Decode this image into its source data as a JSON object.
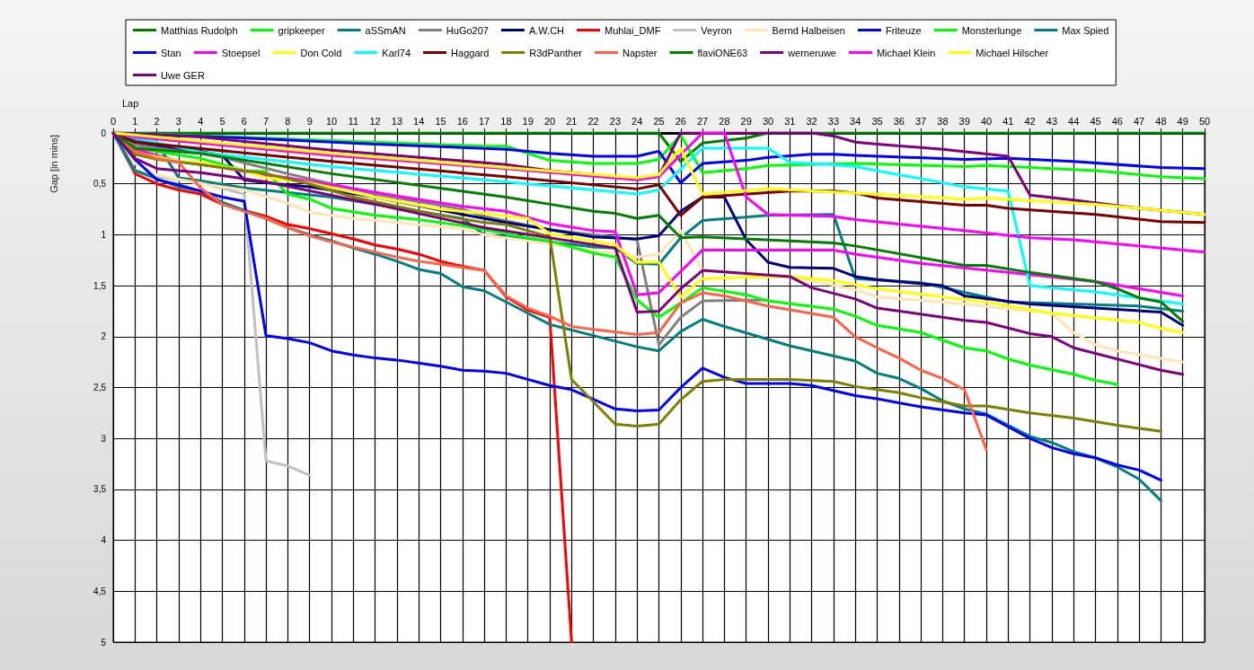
{
  "chart_data": {
    "type": "line",
    "xlabel": "Lap",
    "ylabel": "Gap [in mins]",
    "xlim": [
      0,
      50
    ],
    "xticks": [
      0,
      1,
      2,
      3,
      4,
      5,
      6,
      7,
      8,
      9,
      10,
      11,
      12,
      13,
      14,
      15,
      16,
      17,
      18,
      19,
      20,
      21,
      22,
      23,
      24,
      25,
      26,
      27,
      28,
      29,
      30,
      31,
      32,
      33,
      34,
      35,
      36,
      37,
      38,
      39,
      40,
      41,
      42,
      43,
      44,
      45,
      46,
      47,
      48,
      49,
      50
    ],
    "ylim": [
      5,
      0
    ],
    "yticks": [
      0,
      {
        "value": 0.5,
        "label": "0,5"
      },
      1,
      {
        "value": 1.5,
        "label": "1,5"
      },
      2,
      {
        "value": 2.5,
        "label": "2,5"
      },
      3,
      {
        "value": 3.5,
        "label": "3,5"
      },
      4,
      {
        "value": 4.5,
        "label": "4,5"
      },
      5
    ],
    "grid": true,
    "legend": "top",
    "marker": "none",
    "line_style": "solid",
    "series": [
      {
        "name": "Matthias Rudolph",
        "color": "#008000",
        "x": [
          0,
          25,
          26,
          27,
          29,
          30,
          50
        ],
        "values": [
          0,
          0,
          0.28,
          0.1,
          0.05,
          0,
          0
        ]
      },
      {
        "name": "gripkeeper",
        "color": "#00ff00",
        "x": [
          0,
          7,
          17,
          18,
          20,
          22,
          24,
          25,
          26,
          27,
          29,
          30,
          34,
          39,
          40,
          42,
          45,
          48,
          50
        ],
        "values": [
          0,
          0.05,
          0.13,
          0.13,
          0.27,
          0.3,
          0.3,
          0.26,
          0.02,
          0.39,
          0.35,
          0.32,
          0.3,
          0.33,
          0.32,
          0.34,
          0.37,
          0.43,
          0.45
        ]
      },
      {
        "name": "aSSmAN",
        "color": "#008080",
        "x": [
          0,
          1,
          2,
          3,
          4,
          6,
          10,
          16,
          17,
          18,
          22,
          23,
          24,
          25,
          26,
          27,
          30,
          33,
          34,
          37,
          41,
          47,
          49
        ],
        "values": [
          0,
          0.06,
          0.1,
          0.44,
          0.47,
          0.54,
          0.63,
          0.84,
          1.0,
          1.02,
          1.12,
          1.13,
          1.28,
          1.29,
          1.03,
          0.86,
          0.81,
          0.8,
          1.43,
          1.47,
          1.66,
          1.7,
          1.75
        ]
      },
      {
        "name": "HuGo207",
        "color": "#808080",
        "x": [
          0,
          1,
          4,
          5,
          8,
          12,
          16,
          17,
          20,
          24,
          25,
          26,
          27,
          30
        ],
        "values": [
          0,
          0.12,
          0.2,
          0.24,
          0.4,
          0.6,
          0.75,
          0.82,
          0.95,
          1.05,
          2.08,
          1.81,
          1.65,
          1.64
        ]
      },
      {
        "name": "A.W.CH",
        "color": "#000080",
        "x": [
          0,
          1,
          4,
          5,
          6,
          7,
          9,
          12,
          16,
          18,
          20,
          22,
          24,
          25,
          26,
          27,
          28,
          29,
          30,
          31,
          33,
          34,
          35,
          37,
          38,
          39,
          42,
          45,
          48,
          49
        ],
        "values": [
          0,
          0.09,
          0.18,
          0.22,
          0.46,
          0.49,
          0.53,
          0.63,
          0.8,
          0.88,
          0.95,
          1.02,
          1.04,
          1.01,
          0.77,
          0.63,
          0.63,
          1.05,
          1.27,
          1.32,
          1.33,
          1.41,
          1.44,
          1.48,
          1.5,
          1.6,
          1.68,
          1.72,
          1.76,
          1.89
        ]
      },
      {
        "name": "Muhlai_DMF",
        "color": "#ff0000",
        "x": [
          0,
          1,
          2,
          3,
          4,
          5,
          6,
          7,
          8,
          9,
          10,
          11,
          12,
          13,
          14,
          15,
          16,
          17,
          18,
          19,
          20,
          21
        ],
        "values": [
          0,
          0.4,
          0.5,
          0.56,
          0.6,
          0.7,
          0.76,
          0.82,
          0.9,
          0.94,
          0.99,
          1.04,
          1.1,
          1.14,
          1.19,
          1.26,
          1.31,
          1.35,
          1.61,
          1.74,
          1.81,
          5
        ]
      },
      {
        "name": "Veyron",
        "color": "#c0c0c0",
        "x": [
          0,
          1,
          2,
          4,
          6,
          7,
          8,
          9
        ],
        "values": [
          0,
          0.37,
          0.43,
          0.49,
          0.6,
          3.22,
          3.27,
          3.36
        ]
      },
      {
        "name": "Bernd Halbeisen",
        "color": "#ffe4b5",
        "x": [
          0,
          1,
          2,
          4,
          6,
          8,
          9,
          11,
          13,
          16,
          17,
          19,
          23,
          24,
          25,
          26,
          27,
          30,
          31,
          34,
          35,
          39,
          43,
          44,
          45,
          46,
          49
        ],
        "values": [
          0,
          0.3,
          0.41,
          0.5,
          0.56,
          0.69,
          0.78,
          0.84,
          0.88,
          0.94,
          1.0,
          1.06,
          1.18,
          1.22,
          1.19,
          0.96,
          1.35,
          1.41,
          1.41,
          1.54,
          1.61,
          1.68,
          1.77,
          1.96,
          2.08,
          2.14,
          2.25
        ]
      },
      {
        "name": "Friteuze",
        "color": "#0000ff",
        "x": [
          0,
          7,
          12,
          18,
          20,
          22,
          24,
          25,
          26,
          27,
          29,
          30,
          32,
          33,
          34,
          39,
          41,
          44,
          48,
          50
        ],
        "values": [
          0,
          0.06,
          0.11,
          0.16,
          0.2,
          0.23,
          0.23,
          0.18,
          0.49,
          0.3,
          0.27,
          0.24,
          0.21,
          0.21,
          0.22,
          0.26,
          0.25,
          0.28,
          0.34,
          0.35
        ]
      },
      {
        "name": "Monsterlunge",
        "color": "#00ff00",
        "x": [
          0,
          1,
          4,
          6,
          7,
          8,
          9,
          10,
          12,
          14,
          16,
          17,
          19,
          20,
          22,
          23,
          24,
          25,
          26,
          27,
          29,
          30,
          33,
          34,
          35,
          37,
          39,
          40,
          41,
          42,
          44,
          45,
          46
        ],
        "values": [
          0,
          0.15,
          0.25,
          0.37,
          0.38,
          0.6,
          0.65,
          0.74,
          0.81,
          0.85,
          0.91,
          0.95,
          1.03,
          1.06,
          1.18,
          1.22,
          1.64,
          1.81,
          1.67,
          1.52,
          1.59,
          1.65,
          1.73,
          1.8,
          1.89,
          1.96,
          2.11,
          2.14,
          2.22,
          2.28,
          2.37,
          2.43,
          2.47
        ]
      },
      {
        "name": "Max Spied",
        "color": "#008080",
        "x": [
          0,
          1,
          2,
          3,
          4,
          5,
          6,
          7,
          8,
          9,
          10,
          11,
          12,
          13,
          14,
          15,
          16,
          17,
          19,
          20,
          22,
          24,
          25,
          26,
          27,
          28,
          31,
          34,
          35,
          36,
          37,
          38,
          39,
          40,
          42,
          43,
          44,
          45,
          46,
          47,
          48
        ],
        "values": [
          0,
          0.37,
          0.45,
          0.53,
          0.57,
          0.68,
          0.76,
          0.84,
          0.93,
          1.0,
          1.06,
          1.13,
          1.19,
          1.26,
          1.34,
          1.38,
          1.51,
          1.55,
          1.77,
          1.88,
          1.99,
          2.1,
          2.14,
          1.95,
          1.83,
          1.9,
          2.09,
          2.24,
          2.36,
          2.41,
          2.51,
          2.63,
          2.71,
          2.76,
          2.98,
          3.04,
          3.13,
          3.19,
          3.28,
          3.4,
          3.61
        ]
      },
      {
        "name": "Stan",
        "color": "#0000ff",
        "x": [
          0,
          1,
          2,
          3,
          4,
          5,
          6,
          7,
          8,
          9,
          10,
          11,
          12,
          13,
          14,
          15,
          16,
          17,
          18,
          20,
          21,
          23,
          24,
          25,
          26,
          27,
          28,
          29,
          31,
          32,
          34,
          35,
          37,
          39,
          40,
          42,
          43,
          44,
          45,
          46,
          47,
          48
        ],
        "values": [
          0,
          0.26,
          0.46,
          0.51,
          0.57,
          0.63,
          0.67,
          1.99,
          2.02,
          2.06,
          2.14,
          2.18,
          2.21,
          2.23,
          2.26,
          2.29,
          2.33,
          2.34,
          2.36,
          2.48,
          2.52,
          2.71,
          2.73,
          2.72,
          2.5,
          2.31,
          2.4,
          2.46,
          2.46,
          2.48,
          2.58,
          2.61,
          2.69,
          2.75,
          2.77,
          3.0,
          3.09,
          3.15,
          3.19,
          3.26,
          3.31,
          3.41
        ]
      },
      {
        "name": "Stoepsel",
        "color": "#ff00ff",
        "x": [
          0,
          1,
          3,
          5,
          6,
          7,
          8,
          10,
          13,
          16,
          18,
          20,
          22,
          23,
          24,
          25,
          27,
          33,
          34,
          37,
          41,
          45,
          49
        ],
        "values": [
          0,
          0.16,
          0.28,
          0.34,
          0.38,
          0.41,
          0.44,
          0.51,
          0.62,
          0.72,
          0.77,
          0.89,
          0.96,
          0.97,
          1.59,
          1.57,
          1.15,
          1.15,
          1.19,
          1.28,
          1.37,
          1.46,
          1.6
        ]
      },
      {
        "name": "Don Cold",
        "color": "#ffff00",
        "x": [
          0,
          1,
          3,
          4,
          6,
          7,
          9,
          12,
          15,
          17,
          19,
          20,
          23,
          24,
          25,
          26,
          27,
          30,
          31,
          33,
          34,
          35,
          38,
          40,
          43,
          47,
          48,
          49
        ],
        "values": [
          0,
          0.19,
          0.28,
          0.29,
          0.37,
          0.44,
          0.49,
          0.63,
          0.75,
          0.79,
          0.84,
          0.99,
          1.1,
          1.27,
          1.27,
          1.61,
          1.43,
          1.41,
          1.41,
          1.45,
          1.49,
          1.53,
          1.61,
          1.66,
          1.77,
          1.86,
          1.92,
          1.96
        ]
      },
      {
        "name": "Karl74",
        "color": "#00ffff",
        "x": [
          0,
          4,
          10,
          18,
          24,
          25,
          27,
          30,
          31,
          33,
          34,
          39,
          41,
          42,
          45,
          46,
          49
        ],
        "values": [
          0,
          0.19,
          0.33,
          0.48,
          0.6,
          0.56,
          0.15,
          0.15,
          0.29,
          0.31,
          0.33,
          0.53,
          0.57,
          1.5,
          1.56,
          1.59,
          1.68
        ]
      },
      {
        "name": "Haggard",
        "color": "#800000",
        "x": [
          0,
          1,
          10,
          18,
          24,
          25,
          26,
          27,
          31,
          33,
          34,
          35,
          39,
          40,
          41,
          45,
          48,
          50
        ],
        "values": [
          0,
          0.09,
          0.28,
          0.43,
          0.55,
          0.51,
          0.81,
          0.63,
          0.57,
          0.57,
          0.59,
          0.64,
          0.71,
          0.71,
          0.74,
          0.8,
          0.87,
          0.88
        ]
      },
      {
        "name": "R3dPanther",
        "color": "#808000",
        "x": [
          0,
          1,
          2,
          4,
          6,
          7,
          9,
          11,
          13,
          15,
          17,
          18,
          20,
          21,
          23,
          24,
          25,
          26,
          27,
          28,
          31,
          33,
          34,
          35,
          36,
          37,
          39,
          40,
          42,
          44,
          46,
          48
        ],
        "values": [
          0,
          0.21,
          0.26,
          0.31,
          0.37,
          0.4,
          0.5,
          0.63,
          0.72,
          0.81,
          0.88,
          0.9,
          1.02,
          2.42,
          2.86,
          2.88,
          2.86,
          2.62,
          2.44,
          2.42,
          2.42,
          2.44,
          2.49,
          2.52,
          2.55,
          2.6,
          2.68,
          2.68,
          2.75,
          2.8,
          2.87,
          2.93
        ]
      },
      {
        "name": "Napster",
        "color": "#ff6347",
        "x": [
          0,
          1,
          2,
          3,
          4,
          5,
          6,
          7,
          8,
          9,
          10,
          13,
          14,
          15,
          16,
          17,
          18,
          19,
          20,
          21,
          22,
          24,
          25,
          26,
          27,
          28,
          30,
          33,
          34,
          35,
          36,
          37,
          38,
          39,
          40
        ],
        "values": [
          0,
          0.18,
          0.25,
          0.29,
          0.54,
          0.7,
          0.77,
          0.84,
          0.93,
          1.01,
          1.07,
          1.22,
          1.26,
          1.29,
          1.32,
          1.35,
          1.6,
          1.72,
          1.8,
          1.9,
          1.93,
          1.98,
          1.96,
          1.67,
          1.57,
          1.6,
          1.7,
          1.81,
          2.0,
          2.11,
          2.21,
          2.33,
          2.41,
          2.52,
          3.11
        ]
      },
      {
        "name": "flaviONE63",
        "color": "#008000",
        "x": [
          0,
          1,
          4,
          10,
          18,
          20,
          22,
          23,
          24,
          25,
          26,
          27,
          33,
          34,
          39,
          40,
          42,
          45,
          46,
          47,
          48,
          49
        ],
        "values": [
          0,
          0.15,
          0.2,
          0.4,
          0.63,
          0.7,
          0.77,
          0.79,
          0.84,
          0.81,
          1.03,
          1.02,
          1.08,
          1.11,
          1.3,
          1.3,
          1.37,
          1.46,
          1.53,
          1.62,
          1.66,
          1.85
        ]
      },
      {
        "name": "werneruwe",
        "color": "#800080",
        "x": [
          0,
          4,
          10,
          18,
          20,
          24,
          25,
          26,
          32,
          33,
          34,
          35,
          38,
          41,
          42,
          44,
          47,
          50
        ],
        "values": [
          0,
          0.04,
          0.17,
          0.31,
          0.37,
          0.45,
          0.42,
          0,
          0,
          0.03,
          0.09,
          0.11,
          0.16,
          0.23,
          0.61,
          0.66,
          0.74,
          0.8
        ]
      },
      {
        "name": "Michael Klein",
        "color": "#ff00ff",
        "x": [
          0,
          1,
          10,
          18,
          24,
          25,
          27,
          28,
          29,
          30,
          33,
          34,
          39,
          42,
          44,
          50
        ],
        "values": [
          0,
          0.04,
          0.22,
          0.35,
          0.46,
          0.43,
          0,
          0,
          0.63,
          0.8,
          0.82,
          0.85,
          0.96,
          1.03,
          1.05,
          1.17
        ]
      },
      {
        "name": "Michael Hilscher",
        "color": "#ffff00",
        "x": [
          0,
          10,
          18,
          24,
          25,
          26,
          27,
          30,
          34,
          39,
          40,
          45,
          50
        ],
        "values": [
          0,
          0.2,
          0.34,
          0.44,
          0.41,
          0.15,
          0.6,
          0.55,
          0.59,
          0.65,
          0.64,
          0.7,
          0.8
        ]
      },
      {
        "name": "Uwe GER",
        "color": "#800080",
        "x": [
          0,
          1,
          2,
          4,
          7,
          12,
          17,
          23,
          24,
          25,
          26,
          27,
          31,
          32,
          34,
          35,
          39,
          40,
          42,
          43,
          44,
          48,
          49
        ],
        "values": [
          0,
          0.25,
          0.35,
          0.39,
          0.48,
          0.7,
          0.93,
          1.13,
          1.76,
          1.75,
          1.53,
          1.35,
          1.41,
          1.52,
          1.63,
          1.72,
          1.84,
          1.86,
          1.97,
          2.0,
          2.11,
          2.33,
          2.37
        ]
      }
    ]
  }
}
